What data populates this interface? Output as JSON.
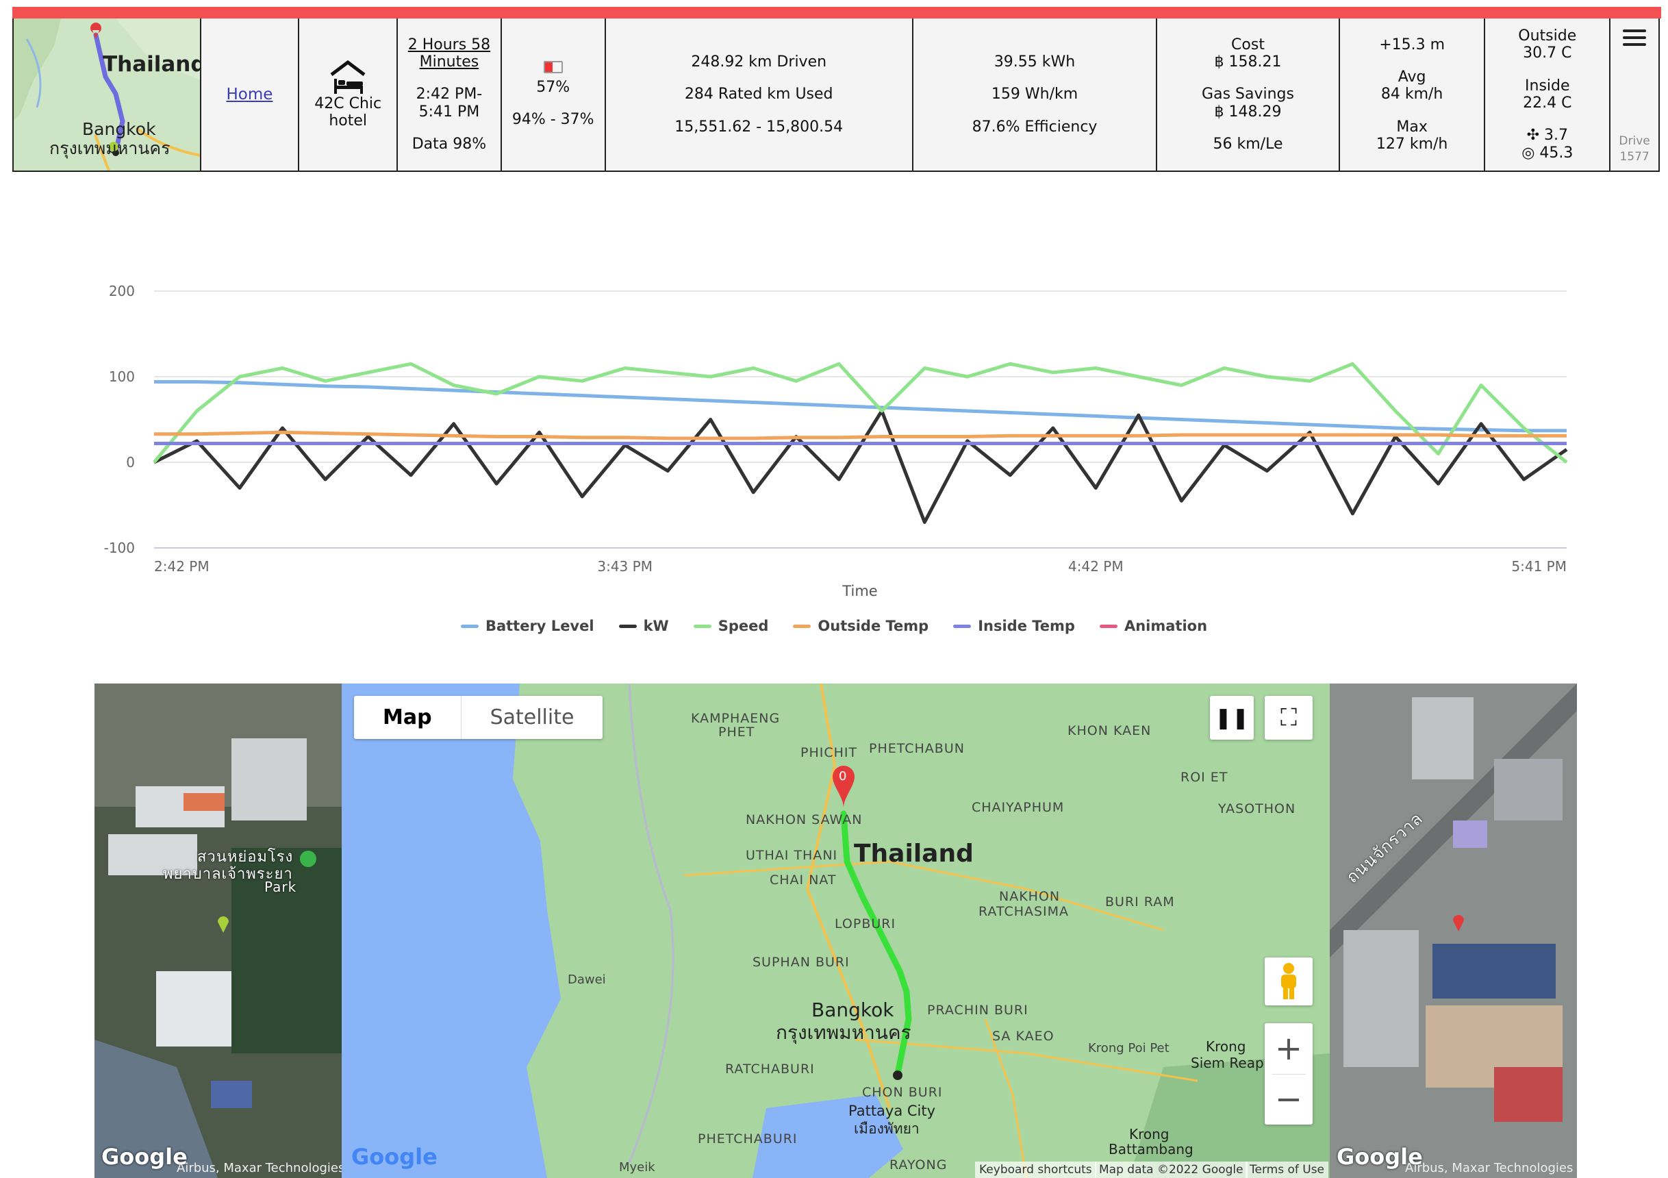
{
  "header": {
    "minimap": {
      "country": "Thailand",
      "city": "Bangkok",
      "city_local": "กรุงเทพมหานคร"
    },
    "home_link": "Home",
    "destination": {
      "icon": "hotel-bed-icon",
      "line1": "42C Chic",
      "line2": "hotel"
    },
    "duration": {
      "line1": "2 Hours 58",
      "line2": "Minutes",
      "time1": "2:42 PM-",
      "time2": "5:41 PM",
      "data": "Data 98%"
    },
    "battery": {
      "percent": "57%",
      "range": "94% - 37%",
      "color": "#e33333"
    },
    "distance": {
      "driven": "248.92 km Driven",
      "rated": "284 Rated km Used",
      "odometer": "15,551.62 - 15,800.54"
    },
    "energy": {
      "kwh": "39.55 kWh",
      "wh_per_km": "159 Wh/km",
      "efficiency": "87.6% Efficiency"
    },
    "cost": {
      "label": "Cost",
      "value": "฿ 158.21",
      "savings_label": "Gas Savings",
      "savings_value": "฿ 148.29",
      "km_per_le": "56 km/Le"
    },
    "speed": {
      "elevation": "+15.3 m",
      "avg_label": "Avg",
      "avg_value": "84 km/h",
      "max_label": "Max",
      "max_value": "127 km/h"
    },
    "temp": {
      "outside_label": "Outside",
      "outside_value": "30.7 C",
      "inside_label": "Inside",
      "inside_value": "22.4 C",
      "fan": "3.7",
      "ac": "45.3"
    },
    "drive": {
      "label": "Drive",
      "number": "1577"
    }
  },
  "chart_data": {
    "type": "line",
    "xlabel": "Time",
    "x_ticks": [
      "2:42 PM",
      "3:43 PM",
      "4:42 PM",
      "5:41 PM"
    ],
    "y_ticks": [
      "200",
      "100",
      "0",
      "-100"
    ],
    "ylim": [
      -100,
      200
    ],
    "grid": true,
    "legend_position": "bottom",
    "series": [
      {
        "name": "Battery Level",
        "color": "#7fb2e6",
        "values": [
          94,
          94,
          93,
          91,
          89,
          88,
          86,
          84,
          82,
          80,
          78,
          76,
          74,
          72,
          70,
          68,
          66,
          64,
          62,
          60,
          58,
          56,
          54,
          52,
          50,
          48,
          46,
          44,
          42,
          40,
          39,
          38,
          37,
          37
        ]
      },
      {
        "name": "kW",
        "color": "#333333",
        "values": [
          0,
          25,
          -30,
          40,
          -20,
          30,
          -15,
          45,
          -25,
          35,
          -40,
          20,
          -10,
          50,
          -35,
          30,
          -20,
          60,
          -70,
          25,
          -15,
          40,
          -30,
          55,
          -45,
          20,
          -10,
          35,
          -60,
          30,
          -25,
          45,
          -20,
          15
        ]
      },
      {
        "name": "Speed",
        "color": "#8fe38a",
        "values": [
          0,
          60,
          100,
          110,
          95,
          105,
          115,
          90,
          80,
          100,
          95,
          110,
          105,
          100,
          110,
          95,
          115,
          60,
          110,
          100,
          115,
          105,
          110,
          100,
          90,
          110,
          100,
          95,
          115,
          60,
          10,
          90,
          40,
          0
        ]
      },
      {
        "name": "Outside Temp",
        "color": "#f0a45c",
        "values": [
          33,
          33,
          34,
          35,
          34,
          33,
          32,
          31,
          30,
          30,
          29,
          29,
          28,
          28,
          28,
          29,
          29,
          30,
          30,
          30,
          31,
          31,
          31,
          31,
          32,
          32,
          32,
          32,
          32,
          32,
          32,
          31,
          31,
          31
        ]
      },
      {
        "name": "Inside Temp",
        "color": "#7f82df",
        "values": [
          22,
          22,
          22,
          22,
          22,
          22,
          22,
          22,
          22,
          22,
          22,
          22,
          22,
          22,
          22,
          22,
          22,
          22,
          22,
          22,
          22,
          22,
          22,
          22,
          22,
          22,
          22,
          22,
          22,
          22,
          22,
          22,
          22,
          22
        ]
      },
      {
        "name": "Animation",
        "color": "#e55880",
        "values": []
      }
    ]
  },
  "map": {
    "map_label": "Map",
    "satellite_label": "Satellite",
    "country_label": "Thailand",
    "city_label": "Bangkok",
    "city_local": "กรุงเทพมหานคร",
    "marker_label": "0",
    "places": [
      "KAMPHAENG",
      "PHET",
      "PHICHIT",
      "PHETCHABUN",
      "KHON KAEN",
      "ROI ET",
      "YASOTHON",
      "CHAIYAPHUM",
      "NAKHON SAWAN",
      "UTHAI THANI",
      "CHAI NAT",
      "LOPBURI",
      "NAKHON",
      "RATCHASIMA",
      "BURI RAM",
      "SUPHAN BURI",
      "Dawei",
      "PRACHIN BURI",
      "SA KAEO",
      "RATCHABURI",
      "CHON BURI",
      "Pattaya City",
      "เมืองพัทยา",
      "PHETCHABURI",
      "RAYONG",
      "Krong Poi Pet",
      "Krong",
      "Siem Reap",
      "Krong",
      "Battambang",
      "Myeik"
    ],
    "attribution": {
      "shortcuts": "Keyboard shortcuts",
      "data": "Map data ©2022 Google",
      "terms": "Terms of Use"
    },
    "left_sat": {
      "attribution": "Airbus, Maxar Technologies",
      "park_local": "สวนหย่อมโรง",
      "park_local2": "พยาบาลเจ้าพระยา",
      "park": "Park"
    },
    "right_sat": {
      "attribution": "Airbus, Maxar Technologies",
      "road_local": "ถนนจักรวาล"
    },
    "google": "Google"
  },
  "colors": {
    "accent_red": "#f35151",
    "route_green": "#3ae03a",
    "route_blue": "#6f6ce0"
  }
}
